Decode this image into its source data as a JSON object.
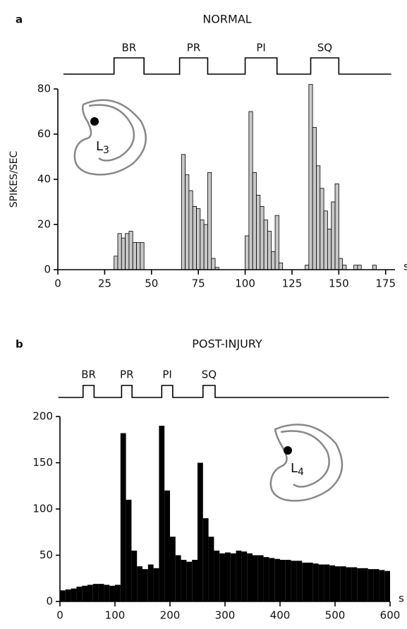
{
  "chart_data": [
    {
      "type": "histogram",
      "panel_label": "a",
      "title": "NORMAL",
      "ylabel": "SPIKES/SEC",
      "xunit": "s",
      "bins": [
        0,
        2,
        4,
        6,
        8,
        10,
        12,
        14,
        16,
        18,
        20,
        22,
        24,
        26,
        28,
        30,
        32,
        34,
        36,
        38,
        40,
        42,
        44,
        46,
        48,
        50,
        52,
        54,
        56,
        58,
        60,
        62,
        64,
        66,
        68,
        70,
        72,
        74,
        76,
        78,
        80,
        82,
        84,
        86,
        88,
        90,
        92,
        94,
        96,
        98,
        100,
        102,
        104,
        106,
        108,
        110,
        112,
        114,
        116,
        118,
        120,
        122,
        124,
        126,
        128,
        130,
        132,
        134,
        136,
        138,
        140,
        142,
        144,
        146,
        148,
        150,
        152,
        154,
        156,
        158,
        160,
        162,
        164,
        166,
        168,
        170,
        172,
        174,
        176
      ],
      "values": [
        0,
        0,
        0,
        0,
        0,
        0,
        0,
        0,
        0,
        0,
        0,
        0,
        0,
        0,
        0,
        6,
        16,
        14,
        16,
        17,
        12,
        12,
        12,
        0,
        0,
        0,
        0,
        0,
        0,
        0,
        0,
        0,
        0,
        51,
        42,
        35,
        28,
        27,
        22,
        20,
        43,
        5,
        1,
        0,
        0,
        0,
        0,
        0,
        0,
        0,
        15,
        70,
        43,
        33,
        28,
        22,
        17,
        8,
        24,
        3,
        0,
        0,
        0,
        0,
        0,
        0,
        2,
        82,
        63,
        46,
        36,
        26,
        18,
        30,
        38,
        5,
        2,
        0,
        0,
        2,
        2,
        0,
        0,
        0,
        2,
        0,
        0,
        0
      ],
      "color": "#c8c8c8",
      "xlim": [
        0,
        180
      ],
      "ylim": [
        0,
        80
      ],
      "xticks": [
        0,
        25,
        50,
        75,
        100,
        125,
        150,
        175
      ],
      "yticks": [
        0,
        20,
        40,
        60,
        80
      ],
      "stimuli": [
        {
          "label": "BR",
          "start": 30,
          "end": 46
        },
        {
          "label": "PR",
          "start": 65,
          "end": 80
        },
        {
          "label": "PI",
          "start": 100,
          "end": 117
        },
        {
          "label": "SQ",
          "start": 135,
          "end": 150
        }
      ],
      "stimulus_range": [
        3,
        178
      ],
      "inset": {
        "label": "L",
        "subscript": "3"
      }
    },
    {
      "type": "histogram",
      "panel_label": "b",
      "title": "POST-INJURY",
      "xunit": "s",
      "bins": [
        0,
        10,
        20,
        30,
        40,
        50,
        60,
        70,
        80,
        90,
        100,
        110,
        120,
        130,
        140,
        150,
        160,
        170,
        180,
        190,
        200,
        210,
        220,
        230,
        240,
        250,
        260,
        270,
        280,
        290,
        300,
        310,
        320,
        330,
        340,
        350,
        360,
        370,
        380,
        390,
        400,
        410,
        420,
        430,
        440,
        450,
        460,
        470,
        480,
        490,
        500,
        510,
        520,
        530,
        540,
        550,
        560,
        570,
        580,
        590,
        600
      ],
      "values": [
        12,
        13,
        14,
        16,
        17,
        18,
        19,
        19,
        18,
        17,
        18,
        182,
        110,
        55,
        38,
        35,
        40,
        36,
        190,
        120,
        70,
        50,
        45,
        43,
        45,
        150,
        90,
        70,
        55,
        52,
        53,
        52,
        55,
        54,
        52,
        50,
        50,
        48,
        47,
        46,
        45,
        45,
        44,
        44,
        42,
        42,
        41,
        40,
        40,
        39,
        38,
        38,
        37,
        37,
        36,
        36,
        35,
        35,
        34,
        33
      ],
      "color": "#000000",
      "xlim": [
        0,
        600
      ],
      "ylim": [
        0,
        200
      ],
      "xticks": [
        0,
        100,
        200,
        300,
        400,
        500,
        600
      ],
      "yticks": [
        0,
        50,
        100,
        150,
        200
      ],
      "stimuli": [
        {
          "label": "BR",
          "start": 42,
          "end": 62
        },
        {
          "label": "PR",
          "start": 112,
          "end": 131
        },
        {
          "label": "PI",
          "start": 185,
          "end": 205
        },
        {
          "label": "SQ",
          "start": 260,
          "end": 282
        }
      ],
      "stimulus_range": [
        -3,
        598
      ],
      "inset": {
        "label": "L",
        "subscript": "4"
      }
    }
  ]
}
